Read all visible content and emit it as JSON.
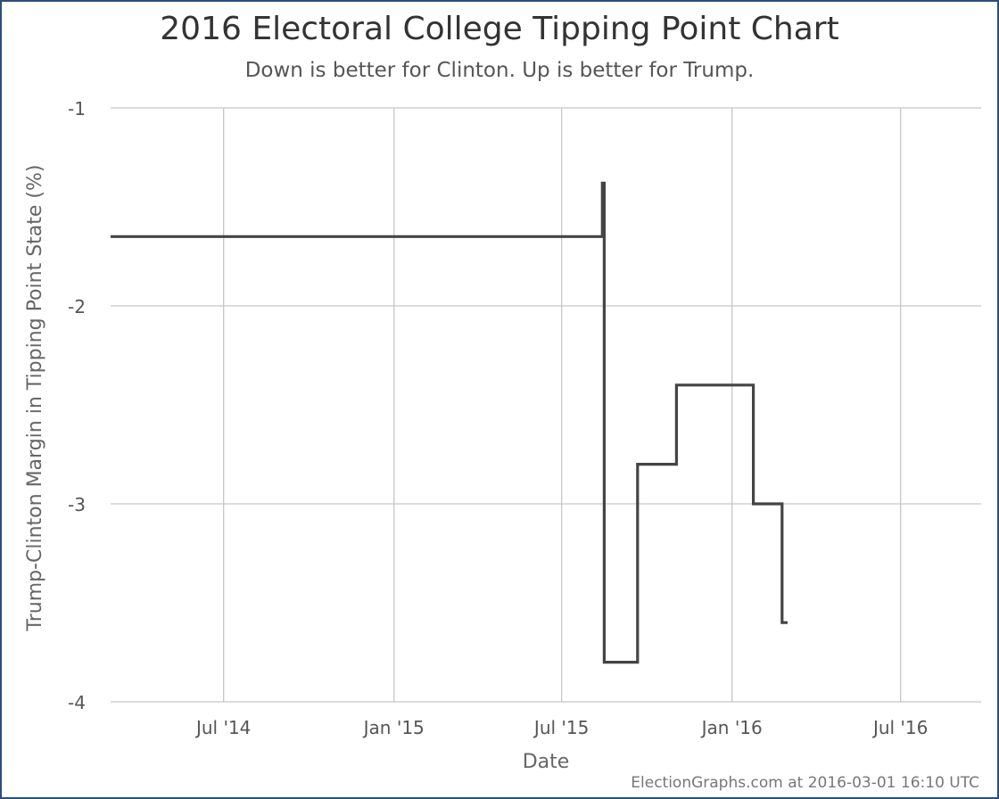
{
  "chart_data": {
    "type": "line",
    "title": "2016 Electoral College Tipping Point Chart",
    "subtitle": "Down is better for Clinton. Up is better for Trump.",
    "xlabel": "Date",
    "ylabel": "Trump-Clinton Margin in Tipping Point State (%)",
    "xlim": [
      "2014-03-01",
      "2016-09-26"
    ],
    "ylim": [
      -4,
      -1
    ],
    "y_ticks": [
      {
        "value": -1,
        "label": "-1"
      },
      {
        "value": -2,
        "label": "-2"
      },
      {
        "value": -3,
        "label": "-3"
      },
      {
        "value": -4,
        "label": "-4"
      }
    ],
    "x_ticks": [
      {
        "date": "2014-07-01",
        "label": "Jul '14"
      },
      {
        "date": "2015-01-01",
        "label": "Jan '15"
      },
      {
        "date": "2015-07-01",
        "label": "Jul '15"
      },
      {
        "date": "2016-01-01",
        "label": "Jan '16"
      },
      {
        "date": "2016-07-01",
        "label": "Jul '16"
      }
    ],
    "grid": true,
    "line_color": "#444444",
    "step": true,
    "series": [
      {
        "points": [
          {
            "x": "2014-03-01",
            "y": -1.65
          },
          {
            "x": "2015-08-14",
            "y": -1.65
          },
          {
            "x": "2015-08-14",
            "y": -1.38
          },
          {
            "x": "2015-08-16",
            "y": -1.38
          },
          {
            "x": "2015-08-16",
            "y": -3.8
          },
          {
            "x": "2015-09-21",
            "y": -3.8
          },
          {
            "x": "2015-09-21",
            "y": -2.8
          },
          {
            "x": "2015-11-02",
            "y": -2.8
          },
          {
            "x": "2015-11-02",
            "y": -2.4
          },
          {
            "x": "2016-01-24",
            "y": -2.4
          },
          {
            "x": "2016-01-24",
            "y": -3.0
          },
          {
            "x": "2016-02-24",
            "y": -3.0
          },
          {
            "x": "2016-02-24",
            "y": -3.6
          },
          {
            "x": "2016-03-01",
            "y": -3.6
          }
        ]
      }
    ]
  },
  "footer": "ElectionGraphs.com at 2016-03-01 16:10 UTC"
}
